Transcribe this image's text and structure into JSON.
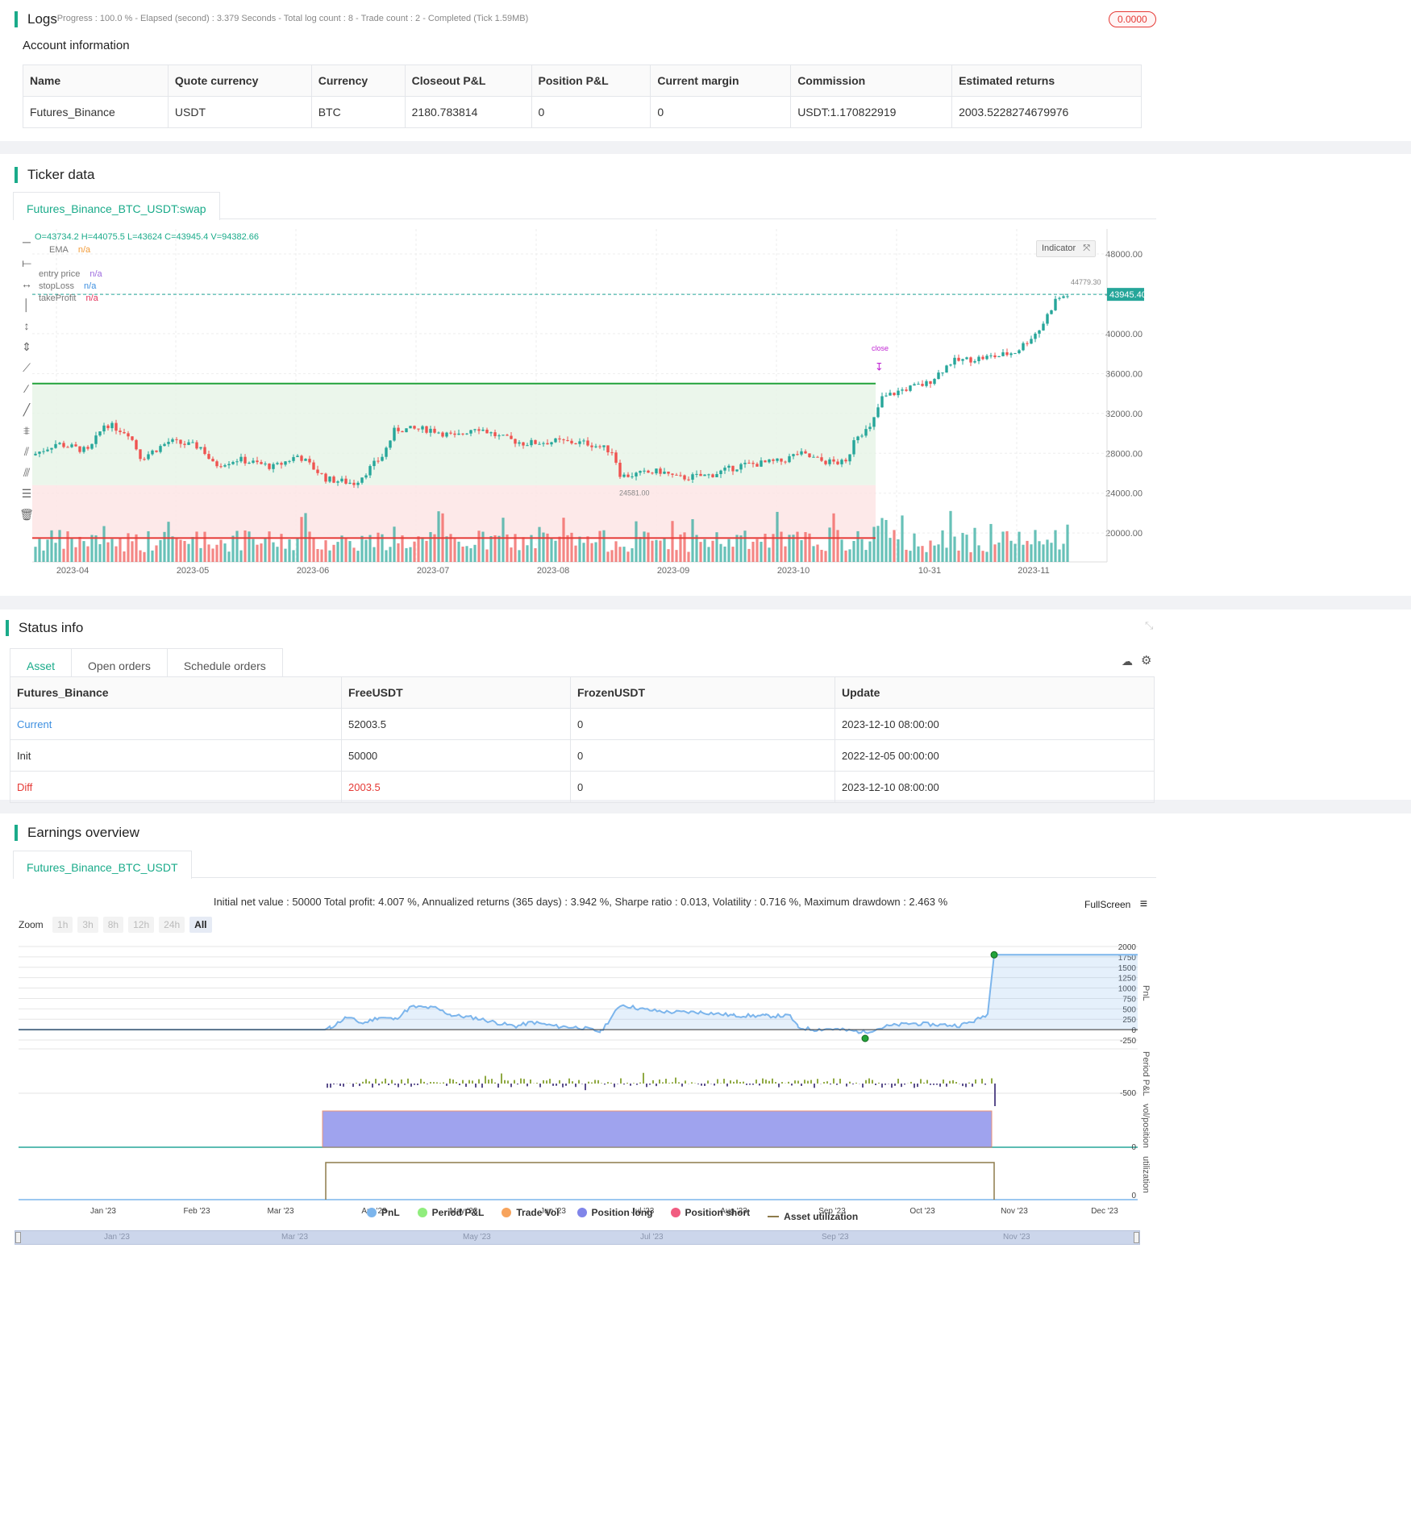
{
  "logs": {
    "title": "Logs",
    "status_line": "- Progress : 100.0 % - Elapsed (second) : 3.379  Seconds - Total log count : 8 - Trade count : 2 - Completed (Tick 1.59MB)",
    "badge": "0.0000"
  },
  "account": {
    "title": "Account information",
    "headers": [
      "Name",
      "Quote currency",
      "Currency",
      "Closeout P&L",
      "Position P&L",
      "Current margin",
      "Commission",
      "Estimated returns"
    ],
    "row": [
      "Futures_Binance",
      "USDT",
      "BTC",
      "2180.783814",
      "0",
      "0",
      "USDT:1.170822919",
      "2003.5228274679976"
    ]
  },
  "ticker": {
    "title": "Ticker data",
    "tab": "Futures_Binance_BTC_USDT:swap",
    "ohlc": "O=43734.2 H=44075.5 L=43624 C=43945.4 V=94382.66",
    "indicator_btn": "Indicator",
    "legend": [
      {
        "label": "EMA",
        "value": "n/a",
        "color": "#f29b38"
      },
      {
        "label": "entry price",
        "value": "n/a",
        "color": "#9c6ade"
      },
      {
        "label": "stopLoss",
        "value": "n/a",
        "color": "#3d8fe0"
      },
      {
        "label": "takeProfit",
        "value": "n/a",
        "color": "#e2315a"
      }
    ],
    "y_ticks": [
      "48000.00",
      "44000.00",
      "40000.00",
      "36000.00",
      "32000.00",
      "28000.00",
      "24000.00",
      "20000.00"
    ],
    "x_ticks": [
      "2023-04",
      "2023-05",
      "2023-06",
      "2023-07",
      "2023-08",
      "2023-09",
      "2023-10",
      "10-31",
      "2023-11"
    ],
    "last_price": "43945.40",
    "high_label": "44779.30",
    "low_label": "24581.00",
    "close_label": "close",
    "colors": {
      "up": "#26a69a",
      "down": "#ef5350",
      "take": "#22a33a",
      "stop": "#e53935"
    }
  },
  "status": {
    "title": "Status info",
    "tabs": [
      "Asset",
      "Open orders",
      "Schedule orders"
    ],
    "headers": [
      "Futures_Binance",
      "FreeUSDT",
      "FrozenUSDT",
      "Update"
    ],
    "rows": [
      {
        "name": "Current",
        "free": "52003.5",
        "frozen": "0",
        "update": "2023-12-10 08:00:00"
      },
      {
        "name": "Init",
        "free": "50000",
        "frozen": "0",
        "update": "2022-12-05 00:00:00"
      },
      {
        "name": "Diff",
        "free": "2003.5",
        "frozen": "0",
        "update": "2023-12-10 08:00:00"
      }
    ]
  },
  "earnings": {
    "title": "Earnings overview",
    "tab": "Futures_Binance_BTC_USDT",
    "summary": "Initial net value : 50000 Total profit: 4.007 %, Annualized returns (365 days) : 3.942 %, Sharpe ratio : 0.013, Volatility : 0.716 %, Maximum drawdown : 2.463 %",
    "fullscreen": "FullScreen",
    "zoom_label": "Zoom",
    "zoom_buttons": [
      "1h",
      "3h",
      "8h",
      "12h",
      "24h",
      "All"
    ],
    "pnl_ticks": [
      "2000",
      "1750",
      "1500",
      "1250",
      "1000",
      "750",
      "500",
      "250",
      "0",
      "-250"
    ],
    "period_tick": "-500",
    "vol_tick": "0",
    "util_tick": "0",
    "axis_titles": {
      "pnl": "PnL",
      "period": "Period P&L",
      "vol": "vol/position",
      "util": "utilization"
    },
    "x_months": [
      "Jan '23",
      "Feb '23",
      "Mar '23",
      "Apr '23",
      "May '23",
      "Jun '23",
      "Jul '23",
      "Aug '23",
      "Sep '23",
      "Oct '23",
      "Nov '23",
      "Dec '23"
    ],
    "nav_months": [
      "Jan '23",
      "Mar '23",
      "May '23",
      "Jul '23",
      "Sep '23",
      "Nov '23"
    ],
    "legend": [
      {
        "label": "PnL",
        "color": "#7cb5ec"
      },
      {
        "label": "Period P&L",
        "color": "#90ed7d"
      },
      {
        "label": "Trade Vol",
        "color": "#f7a35c"
      },
      {
        "label": "Position long",
        "color": "#8085e9"
      },
      {
        "label": "Position short",
        "color": "#f15c80"
      },
      {
        "label": "Asset utilization",
        "color": "#8d7b4b"
      }
    ]
  }
}
